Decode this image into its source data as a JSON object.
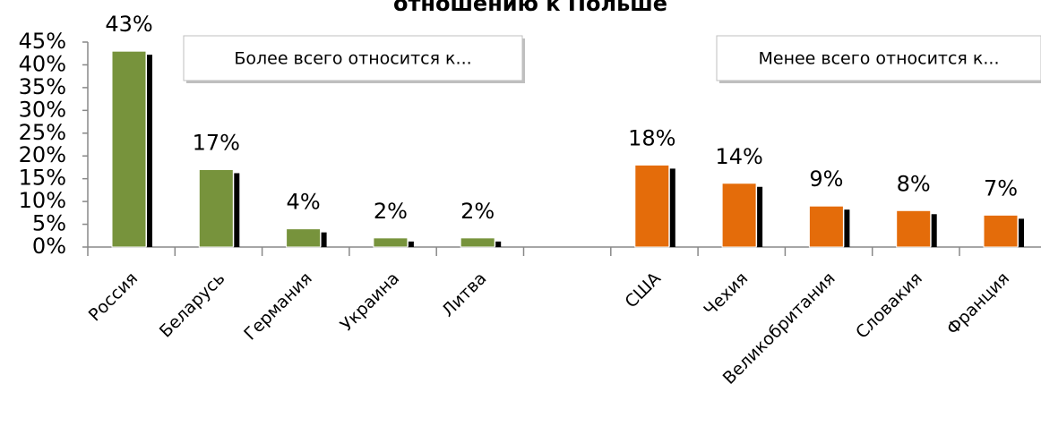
{
  "chart_data": {
    "type": "bar",
    "title": "отношению к Польше",
    "annotations": [
      "Более всего относится к...",
      "Менее всего относится к..."
    ],
    "categories": [
      "Россия",
      "Беларусь",
      "Германия",
      "Украина",
      "Литва",
      null,
      "США",
      "Чехия",
      "Великобритания",
      "Словакия",
      "Франция"
    ],
    "values": [
      43,
      17,
      4,
      2,
      2,
      null,
      18,
      14,
      9,
      8,
      7
    ],
    "value_labels": [
      "43%",
      "17%",
      "4%",
      "2%",
      "2%",
      null,
      "18%",
      "14%",
      "9%",
      "8%",
      "7%"
    ],
    "colors": [
      "#77933c",
      "#77933c",
      "#77933c",
      "#77933c",
      "#77933c",
      null,
      "#e46c0a",
      "#e46c0a",
      "#e46c0a",
      "#e46c0a",
      "#e46c0a"
    ],
    "ylim": [
      0,
      45
    ],
    "yticks": [
      {
        "value": 0,
        "label": "0%"
      },
      {
        "value": 5,
        "label": "5%"
      },
      {
        "value": 10,
        "label": "10%"
      },
      {
        "value": 15,
        "label": "15%"
      },
      {
        "value": 20,
        "label": "20%"
      },
      {
        "value": 25,
        "label": "25%"
      },
      {
        "value": 30,
        "label": "30%"
      },
      {
        "value": 35,
        "label": "35%"
      },
      {
        "value": 40,
        "label": "40%"
      },
      {
        "value": 45,
        "label": "45%"
      }
    ],
    "grid": false
  }
}
